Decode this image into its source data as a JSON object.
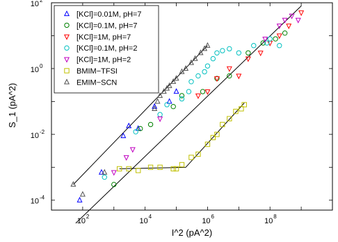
{
  "chart_data": {
    "type": "scatter",
    "title": "",
    "xlabel": "I^2 (pA^2)",
    "ylabel": "S_1 (pA^2)",
    "x_scale": "log",
    "y_scale": "log",
    "xlim": [
      10,
      10000000000
    ],
    "ylim": [
      5e-05,
      100
    ],
    "x_ticks": [
      {
        "value": 100,
        "label": "10",
        "exp": "2"
      },
      {
        "value": 10000,
        "label": "10",
        "exp": "4"
      },
      {
        "value": 1000000,
        "label": "10",
        "exp": "6"
      },
      {
        "value": 100000000,
        "label": "10",
        "exp": "8"
      }
    ],
    "y_ticks": [
      {
        "value": 0.0001,
        "label": "10",
        "exp": "-4"
      },
      {
        "value": 0.01,
        "label": "10",
        "exp": "-2"
      },
      {
        "value": 1,
        "label": "10",
        "exp": "0"
      },
      {
        "value": 100,
        "label": "10",
        "exp": "2"
      }
    ],
    "grid": false,
    "legend_position": "top-left",
    "series": [
      {
        "name": "[KCl]=0.01M, pH=7",
        "color": "#0000ff",
        "marker": "triangle-up",
        "points": [
          [
            80,
            0.0001
          ],
          [
            400,
            0.0007
          ],
          [
            2000,
            0.009
          ],
          [
            3000,
            0.018
          ],
          [
            6000,
            0.015
          ],
          [
            20000,
            0.07
          ],
          [
            60000,
            0.1
          ],
          [
            100000,
            0.2
          ]
        ]
      },
      {
        "name": "[KCl]=0.1M, pH=7",
        "color": "#008000",
        "marker": "circle",
        "points": [
          [
            1000,
            0.0003
          ],
          [
            7000,
            0.015
          ],
          [
            15000,
            0.02
          ],
          [
            80000,
            0.07
          ],
          [
            150000,
            0.15
          ],
          [
            700000,
            0.2
          ],
          [
            2000000,
            0.5
          ],
          [
            5000000,
            0.6
          ],
          [
            20000000,
            3
          ],
          [
            60000000,
            6
          ],
          [
            150000000,
            8
          ],
          [
            300000000,
            12
          ]
        ]
      },
      {
        "name": "[KCl]=1M, pH=7",
        "color": "#ff0000",
        "marker": "triangle-down",
        "points": [
          [
            500000,
            0.15
          ],
          [
            1000000,
            0.2
          ],
          [
            2000000,
            0.5
          ],
          [
            5000000,
            1
          ],
          [
            10000000,
            0.6
          ],
          [
            20000000,
            2
          ],
          [
            50000000,
            3
          ],
          [
            100000000,
            6
          ],
          [
            200000000,
            10
          ],
          [
            400000000,
            20
          ],
          [
            1000000000,
            50
          ]
        ]
      },
      {
        "name": "[KCl]=0.1M, pH=2",
        "color": "#00c0c0",
        "marker": "circle",
        "points": [
          [
            500,
            0.0005
          ],
          [
            5000,
            0.012
          ],
          [
            30000,
            0.04
          ],
          [
            50000,
            0.08
          ],
          [
            150000,
            0.12
          ],
          [
            250000,
            0.2
          ],
          [
            300000,
            0.4
          ],
          [
            500000,
            0.6
          ],
          [
            800000,
            0.8
          ],
          [
            1000000,
            1.2
          ],
          [
            1500000,
            2
          ],
          [
            2000000,
            3
          ],
          [
            3000000,
            3.5
          ],
          [
            5000000,
            4
          ],
          [
            10000000,
            3
          ],
          [
            30000000,
            5
          ],
          [
            80000000,
            6
          ],
          [
            100000000,
            8
          ],
          [
            200000000,
            5
          ]
        ]
      },
      {
        "name": "[KCl]=1M, pH=2",
        "color": "#c000c0",
        "marker": "triangle-down",
        "points": [
          [
            1000,
            0.0007
          ],
          [
            2500,
            0.002
          ],
          [
            4000,
            0.0035
          ],
          [
            30000,
            0.03
          ],
          [
            70000000,
            8
          ],
          [
            200000000,
            20
          ],
          [
            300000000,
            30
          ],
          [
            500000000,
            40
          ],
          [
            800000000,
            30
          ]
        ]
      },
      {
        "name": "BMIM−TFSI",
        "color": "#c0c000",
        "marker": "square",
        "points": [
          [
            1500,
            0.0009
          ],
          [
            3000,
            0.0009
          ],
          [
            6000,
            0.0008
          ],
          [
            15000,
            0.001
          ],
          [
            30000,
            0.001
          ],
          [
            80000,
            0.0009
          ],
          [
            100000,
            0.0009
          ],
          [
            150000,
            0.0012
          ],
          [
            300000,
            0.002
          ],
          [
            500000,
            0.0025
          ],
          [
            1000000,
            0.005
          ],
          [
            1500000,
            0.008
          ],
          [
            2000000,
            0.01
          ],
          [
            3000000,
            0.02
          ],
          [
            5000000,
            0.03
          ],
          [
            8000000,
            0.05
          ],
          [
            12000000,
            0.06
          ],
          [
            15000000,
            0.08
          ]
        ]
      },
      {
        "name": "EMIM−SCN",
        "color": "#505050",
        "marker": "triangle-up",
        "points": [
          [
            50,
            0.0003
          ],
          [
            100,
            0.00015
          ],
          [
            500,
            0.0007
          ],
          [
            20000,
            0.06
          ],
          [
            25000,
            0.1
          ],
          [
            30000,
            0.15
          ],
          [
            40000,
            0.2
          ],
          [
            50000,
            0.25
          ],
          [
            60000,
            0.3
          ],
          [
            80000,
            0.4
          ],
          [
            100000,
            0.5
          ],
          [
            150000,
            0.8
          ],
          [
            200000,
            1
          ],
          [
            300000,
            1.5
          ],
          [
            400000,
            2
          ],
          [
            600000,
            3
          ],
          [
            800000,
            4
          ],
          [
            1000000,
            5
          ]
        ]
      }
    ],
    "fit_lines": [
      {
        "points": [
          [
            50,
            0.0003
          ],
          [
            1000000,
            5
          ]
        ]
      },
      {
        "points": [
          [
            60,
            2e-05
          ],
          [
            1000000000,
            80
          ]
        ]
      },
      {
        "points": [
          [
            1500,
            0.0009
          ],
          [
            200000,
            0.001
          ],
          [
            15000000,
            0.09
          ]
        ]
      }
    ]
  }
}
